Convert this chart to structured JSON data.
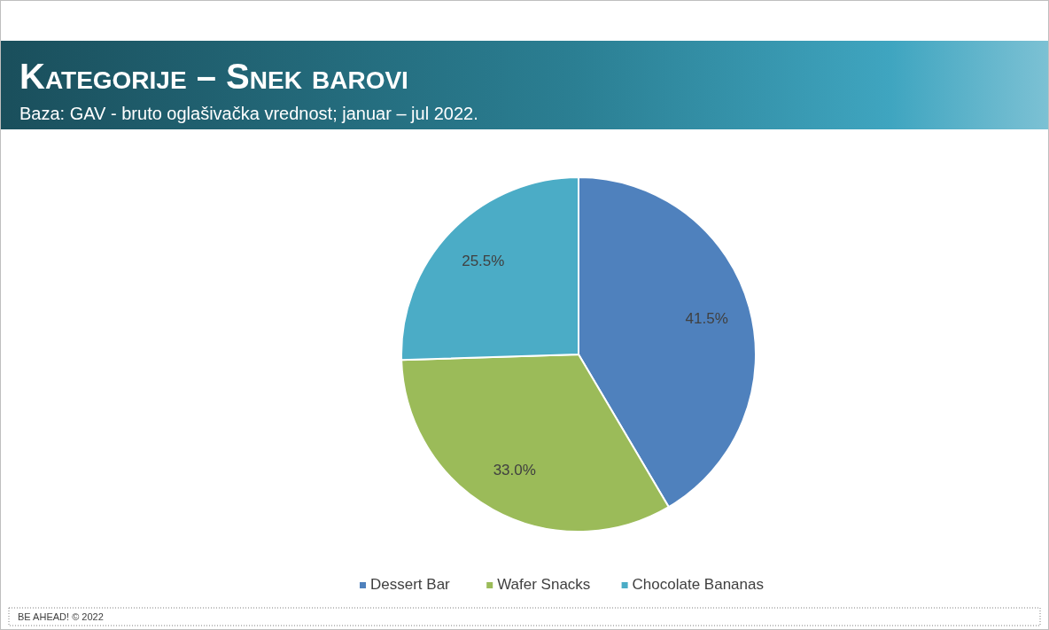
{
  "chart_data": {
    "type": "pie",
    "title": "Kategorije – Snek barovi",
    "subtitle": "Baza: GAV - bruto oglašivačka vrednost; januar – jul 2022.",
    "categories": [
      "Dessert Bar",
      "Wafer Snacks",
      "Chocolate Bananas"
    ],
    "values": [
      41.5,
      33.0,
      25.5
    ],
    "colors": [
      "#4f81bd",
      "#9bbb59",
      "#4bacc6"
    ],
    "value_labels": [
      "41.5%",
      "33.0%",
      "25.5%"
    ],
    "legend": "bottom",
    "annotations": [
      "BE AHEAD! © 2022"
    ]
  }
}
